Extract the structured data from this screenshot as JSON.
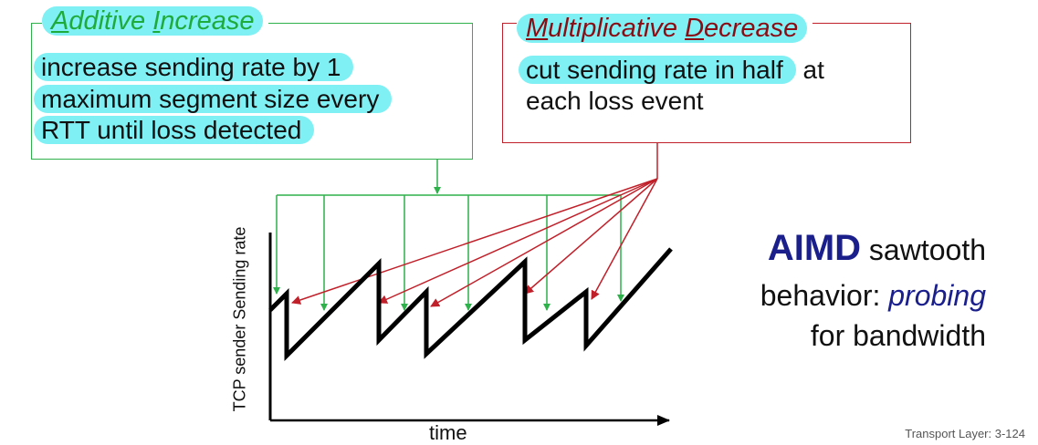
{
  "additive_increase": {
    "title_first_letter": "A",
    "title_rest_1": "dditive ",
    "title_first_letter_2": "I",
    "title_rest_2": "ncrease",
    "lines": [
      "increase sending rate by 1",
      "maximum segment size every",
      "RTT until loss detected"
    ]
  },
  "multiplicative_decrease": {
    "title_first_letter": "M",
    "title_rest_1": "ultiplicative ",
    "title_first_letter_2": "D",
    "title_rest_2": "ecrease",
    "line1_highlight": "cut sending rate in half",
    "line1_rest": " at",
    "line2": "each loss event"
  },
  "aimd_caption": {
    "strong": "AIMD",
    "line1_rest": " sawtooth",
    "line2_start": "behavior: ",
    "line2_em": "probing",
    "line3": "for bandwidth"
  },
  "axes": {
    "ylabel": "TCP sender  Sending rate",
    "xlabel": "time"
  },
  "footer": "Transport Layer: 3-124",
  "colors": {
    "green": "#2eb04a",
    "red": "#c0202a",
    "highlight": "#7ff0f4",
    "accent_blue": "#1a1f8c"
  }
}
